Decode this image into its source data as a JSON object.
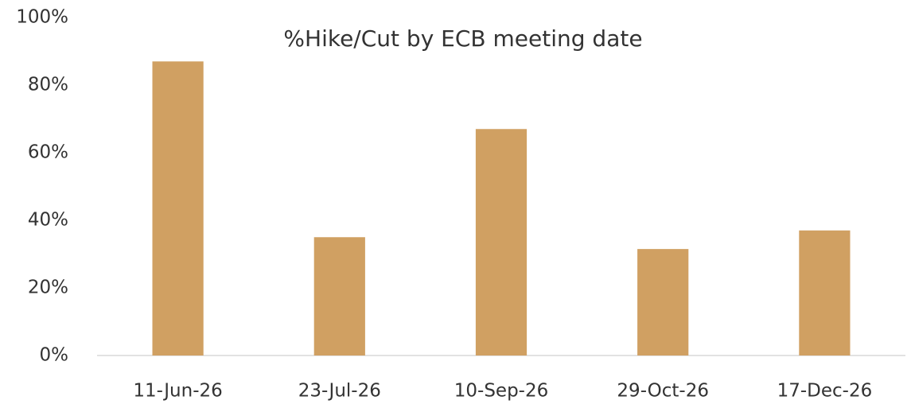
{
  "chart_data": {
    "type": "bar",
    "title": "%Hike/Cut by ECB meeting date",
    "categories": [
      "11-Jun-26",
      "23-Jul-26",
      "10-Sep-26",
      "29-Oct-26",
      "17-Dec-26"
    ],
    "values": [
      87,
      35,
      67,
      31.5,
      37
    ],
    "color": "#d0a062",
    "ylim": [
      0,
      100
    ],
    "yticks": [
      {
        "value": 0,
        "label": "0%"
      },
      {
        "value": 20,
        "label": "20%"
      },
      {
        "value": 40,
        "label": "40%"
      },
      {
        "value": 60,
        "label": "60%"
      },
      {
        "value": 80,
        "label": "80%"
      },
      {
        "value": 100,
        "label": "100%"
      }
    ],
    "grid": false
  }
}
